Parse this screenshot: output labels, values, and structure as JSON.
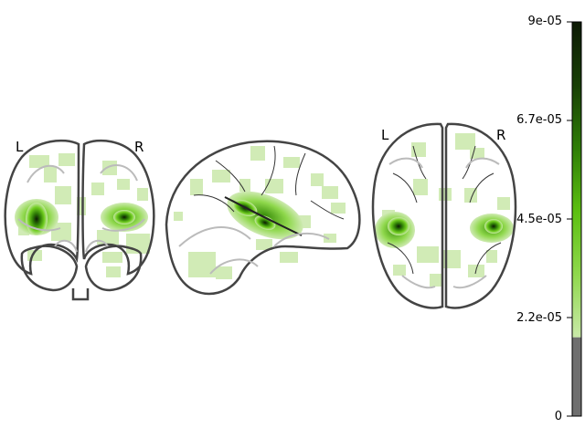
{
  "views": {
    "coronal": {
      "left_label": "L",
      "right_label": "R"
    },
    "sagittal": {},
    "axial": {
      "left_label": "L",
      "right_label": "R"
    }
  },
  "colorbar": {
    "colormap": [
      "#6e6e6e",
      "#c9e9a8",
      "#8fd84c",
      "#5cbf11",
      "#2f7d07",
      "#183f06",
      "#0d1a05"
    ],
    "threshold_fraction": 0.2,
    "ticks": [
      "0",
      "2.2e-05",
      "4.5e-05",
      "6.7e-05",
      "9e-05"
    ],
    "vmin": 0,
    "vmax": 9e-05
  }
}
